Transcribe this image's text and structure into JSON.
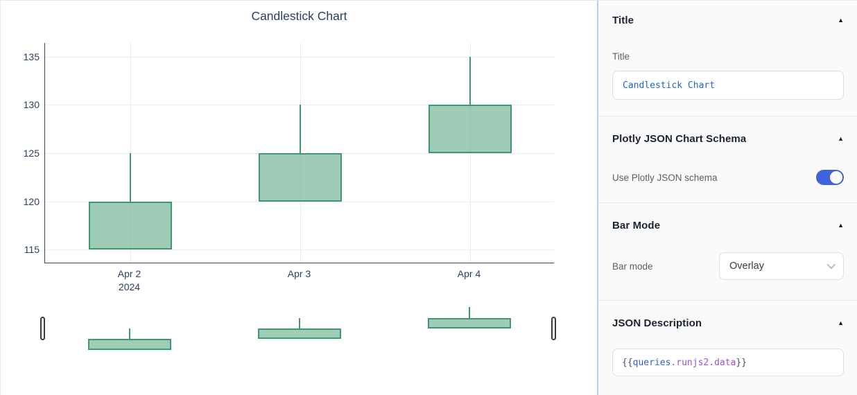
{
  "chart_data": {
    "type": "candlestick",
    "title": "Candlestick Chart",
    "categories": [
      "Apr 2",
      "Apr 3",
      "Apr 4"
    ],
    "category_sublabels": [
      "2024",
      "",
      ""
    ],
    "series": {
      "open": [
        115,
        120,
        125
      ],
      "high": [
        125,
        130,
        135
      ],
      "low": [
        115,
        120,
        125
      ],
      "close": [
        120,
        125,
        130
      ]
    },
    "yticks": [
      115,
      120,
      125,
      130,
      135
    ],
    "ylim": [
      113.6,
      136.4
    ],
    "increasing_color": "#3D9970",
    "increasing_fill": "rgba(61,153,112,0.5)",
    "grid": true,
    "legend": false,
    "rangeslider": true
  },
  "panel": {
    "collapse_icon": "▲",
    "colors": {
      "toggle_on": "#3e63dd",
      "title_value_text": "#2264cc",
      "panel_border": "#b9cdf4"
    },
    "sections": {
      "title": {
        "header": "Title",
        "label": "Title",
        "value": "Candlestick Chart"
      },
      "schema": {
        "header": "Plotly JSON Chart Schema",
        "toggle_label": "Use Plotly JSON schema",
        "toggle_state": "on"
      },
      "bar_mode": {
        "header": "Bar Mode",
        "label": "Bar mode",
        "value": "Overlay"
      },
      "json_description": {
        "header": "JSON Description",
        "value": "{{queries.runjs2.data}}",
        "segments": [
          {
            "text": "{{",
            "color": "#3f4e60"
          },
          {
            "text": "queries",
            "color": "#2d5fd3"
          },
          {
            "text": ".runjs2.data",
            "color": "#9c4fd4"
          },
          {
            "text": "}}",
            "color": "#3f4e60"
          }
        ]
      }
    }
  }
}
